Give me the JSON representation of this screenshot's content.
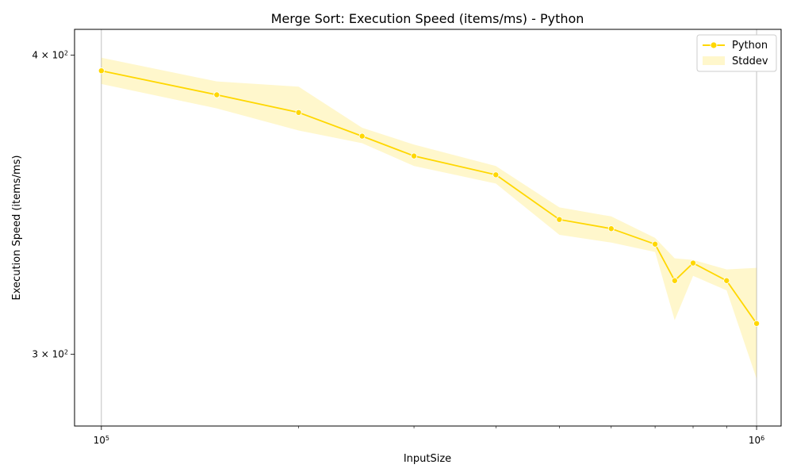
{
  "chart_data": {
    "type": "line",
    "title": "Merge Sort: Execution Speed (items/ms) - Python",
    "xlabel": "InputSize",
    "ylabel": "Execution Speed (items/ms)",
    "x_scale": "log",
    "y_scale": "log",
    "xlim": [
      91000,
      1090000
    ],
    "ylim": [
      280,
      410
    ],
    "x_tick_labels": [
      "10^5",
      "10^6"
    ],
    "x_ticks": [
      100000,
      1000000
    ],
    "y_tick_labels": [
      "3 × 10^2",
      "4 × 10^2"
    ],
    "y_ticks": [
      300,
      400
    ],
    "grid": "x-major",
    "legend_position": "top-right",
    "colors": {
      "line": "#FFD700",
      "band": "#FFD700"
    },
    "series": [
      {
        "name": "Python",
        "x": [
          100000,
          150000,
          200000,
          250000,
          300000,
          400000,
          500000,
          600000,
          700000,
          750000,
          800000,
          900000,
          1000000
        ],
        "y": [
          394,
          385,
          378.5,
          370,
          363,
          356.5,
          341.5,
          338.5,
          333.5,
          322,
          327.5,
          322,
          309
        ],
        "y_lower": [
          389,
          380,
          372,
          367.5,
          359.5,
          353.5,
          336.5,
          334,
          331,
          310,
          323.5,
          319,
          293
        ],
        "y_upper": [
          399,
          390,
          388,
          373,
          367,
          359.5,
          345.5,
          342.5,
          335.5,
          329,
          328.5,
          325.5,
          326
        ]
      }
    ],
    "legend": [
      {
        "label": "Python",
        "kind": "line-marker"
      },
      {
        "label": "Stddev",
        "kind": "patch"
      }
    ]
  }
}
